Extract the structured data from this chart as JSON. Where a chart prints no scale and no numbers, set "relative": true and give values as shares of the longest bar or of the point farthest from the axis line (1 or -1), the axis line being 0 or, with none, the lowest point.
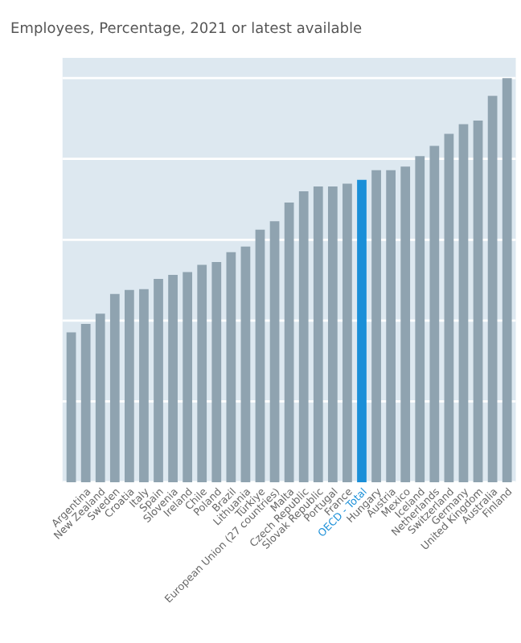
{
  "chart_data": {
    "type": "bar",
    "subtitle": "Employees, Percentage, 2021 or latest available",
    "categories": [
      null,
      "Argentina",
      "New Zealand",
      "Sweden",
      "Croatia",
      "Italy",
      "Spain",
      "Slovenia",
      "Ireland",
      "Chile",
      "Poland",
      "Brazil",
      "Lithuania",
      "Türkiye",
      "European Union (27 countries)",
      "Malta",
      "Czech Republic",
      "Slovak Republic",
      "Portugal",
      "France",
      "OECD - Total",
      "Hungary",
      "Austria",
      "Mexico",
      "Iceland",
      "Netherlands",
      "Switzerland",
      "Germany",
      "United Kingdom",
      "Australia",
      "Finland"
    ],
    "values": [
      0.371,
      0.392,
      0.417,
      0.466,
      0.476,
      0.478,
      0.503,
      0.513,
      0.52,
      0.538,
      0.545,
      0.569,
      0.583,
      0.625,
      0.646,
      0.692,
      0.72,
      0.732,
      0.732,
      0.739,
      0.748,
      0.772,
      0.772,
      0.781,
      0.807,
      0.832,
      0.862,
      0.886,
      0.895,
      0.956,
      1
    ],
    "colors": [
      "#8fa3b0",
      "#8fa3b0",
      "#8fa3b0",
      "#8fa3b0",
      "#8fa3b0",
      "#8fa3b0",
      "#8fa3b0",
      "#8fa3b0",
      "#8fa3b0",
      "#8fa3b0",
      "#8fa3b0",
      "#8fa3b0",
      "#8fa3b0",
      "#8fa3b0",
      "#8fa3b0",
      "#8fa3b0",
      "#8fa3b0",
      "#8fa3b0",
      "#8fa3b0",
      "#8fa3b0",
      "#1a8fd8",
      "#8fa3b0",
      "#8fa3b0",
      "#8fa3b0",
      "#8fa3b0",
      "#8fa3b0",
      "#8fa3b0",
      "#8fa3b0",
      "#8fa3b0",
      "#8fa3b0",
      "#8fa3b0"
    ],
    "relative": true,
    "grid": "y"
  }
}
